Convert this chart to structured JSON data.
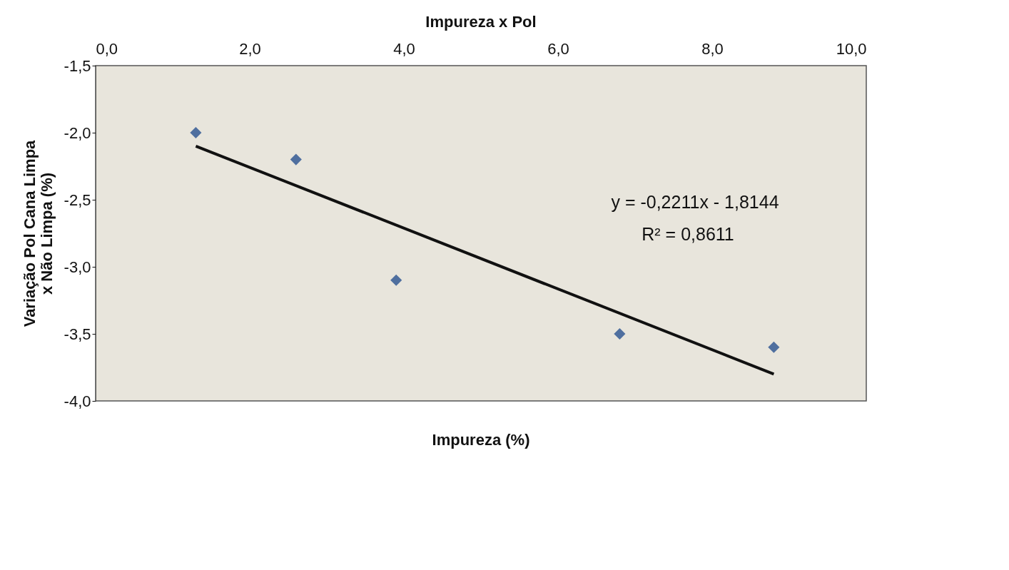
{
  "chart_data": {
    "type": "scatter",
    "title": "Impureza x Pol",
    "xlabel": "Impureza (%)",
    "ylabel": "Variação Pol Cana Limpa x Não Limpa (%)",
    "series": [
      {
        "type": "scatter",
        "color": "#4f6f9f",
        "marker": "diamond",
        "x": [
          1.3,
          2.6,
          3.9,
          6.8,
          8.8
        ],
        "values": [
          -2.0,
          -2.2,
          -3.1,
          -3.5,
          -3.6
        ]
      },
      {
        "type": "line",
        "color": "#111111",
        "line_style": "solid",
        "x": [
          1.3,
          8.8
        ],
        "values": [
          -2.1,
          -3.8
        ]
      }
    ],
    "xlim": [
      0,
      10
    ],
    "ylim": [
      -4.0,
      -1.5
    ],
    "xticks": [
      {
        "value": 0,
        "label": "0,0"
      },
      {
        "value": 2,
        "label": "2,0"
      },
      {
        "value": 4,
        "label": "4,0"
      },
      {
        "value": 6,
        "label": "6,0"
      },
      {
        "value": 8,
        "label": "8,0"
      },
      {
        "value": 10,
        "label": "10,0"
      }
    ],
    "yticks": [
      {
        "value": -4.0,
        "label": "-4,0"
      },
      {
        "value": -3.5,
        "label": "-3,5"
      },
      {
        "value": -3.0,
        "label": "-3,0"
      },
      {
        "value": -2.5,
        "label": "-2,5"
      },
      {
        "value": -2.0,
        "label": "-2,0"
      },
      {
        "value": -1.5,
        "label": "-1,5"
      }
    ],
    "annotations": [
      "y = -0,2211x - 1,8144",
      "R² = 0,8611"
    ],
    "grid": false
  }
}
